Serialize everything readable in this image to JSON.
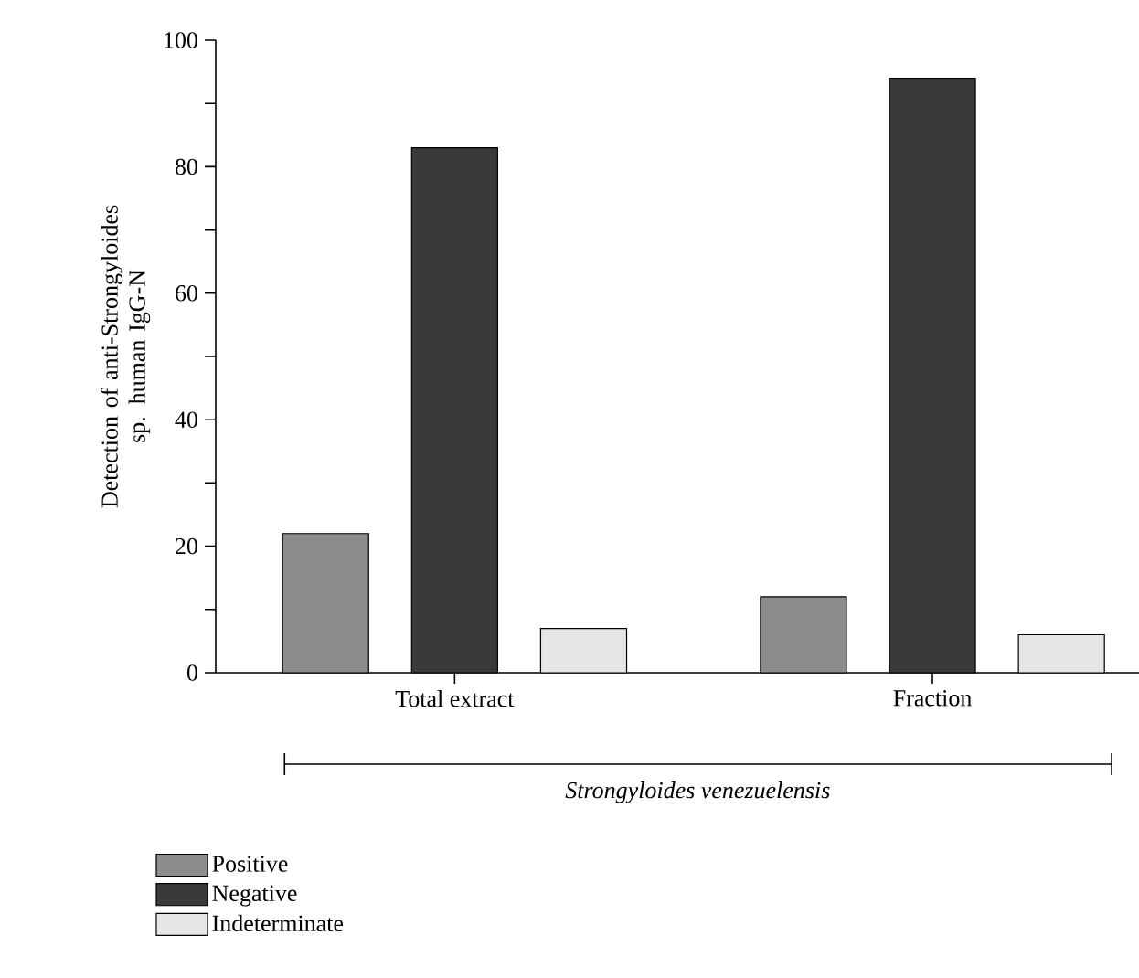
{
  "chart_data": {
    "type": "bar",
    "ylabel": "Detection of anti-Strongyloides sp. human IgG-N",
    "xlabel": "Strongyloides venezuelensis",
    "categories": [
      "Total extract",
      "Fraction"
    ],
    "series": [
      {
        "name": "Positive",
        "color": "#8c8c8c",
        "values": [
          22,
          12
        ]
      },
      {
        "name": "Negative",
        "color": "#3a3a3a",
        "values": [
          83,
          94
        ]
      },
      {
        "name": "Indeterminate",
        "color": "#e6e6e6",
        "values": [
          7,
          6
        ]
      }
    ],
    "ylim": [
      0,
      100
    ],
    "yticks": [
      0,
      {
        "value": 10,
        "label": null
      },
      20,
      {
        "value": 30,
        "label": null
      },
      40,
      {
        "value": 50,
        "label": null
      },
      60,
      {
        "value": 70,
        "label": null
      },
      80,
      {
        "value": 90,
        "label": null
      },
      100
    ],
    "grid": false,
    "legend": "bottom left"
  }
}
